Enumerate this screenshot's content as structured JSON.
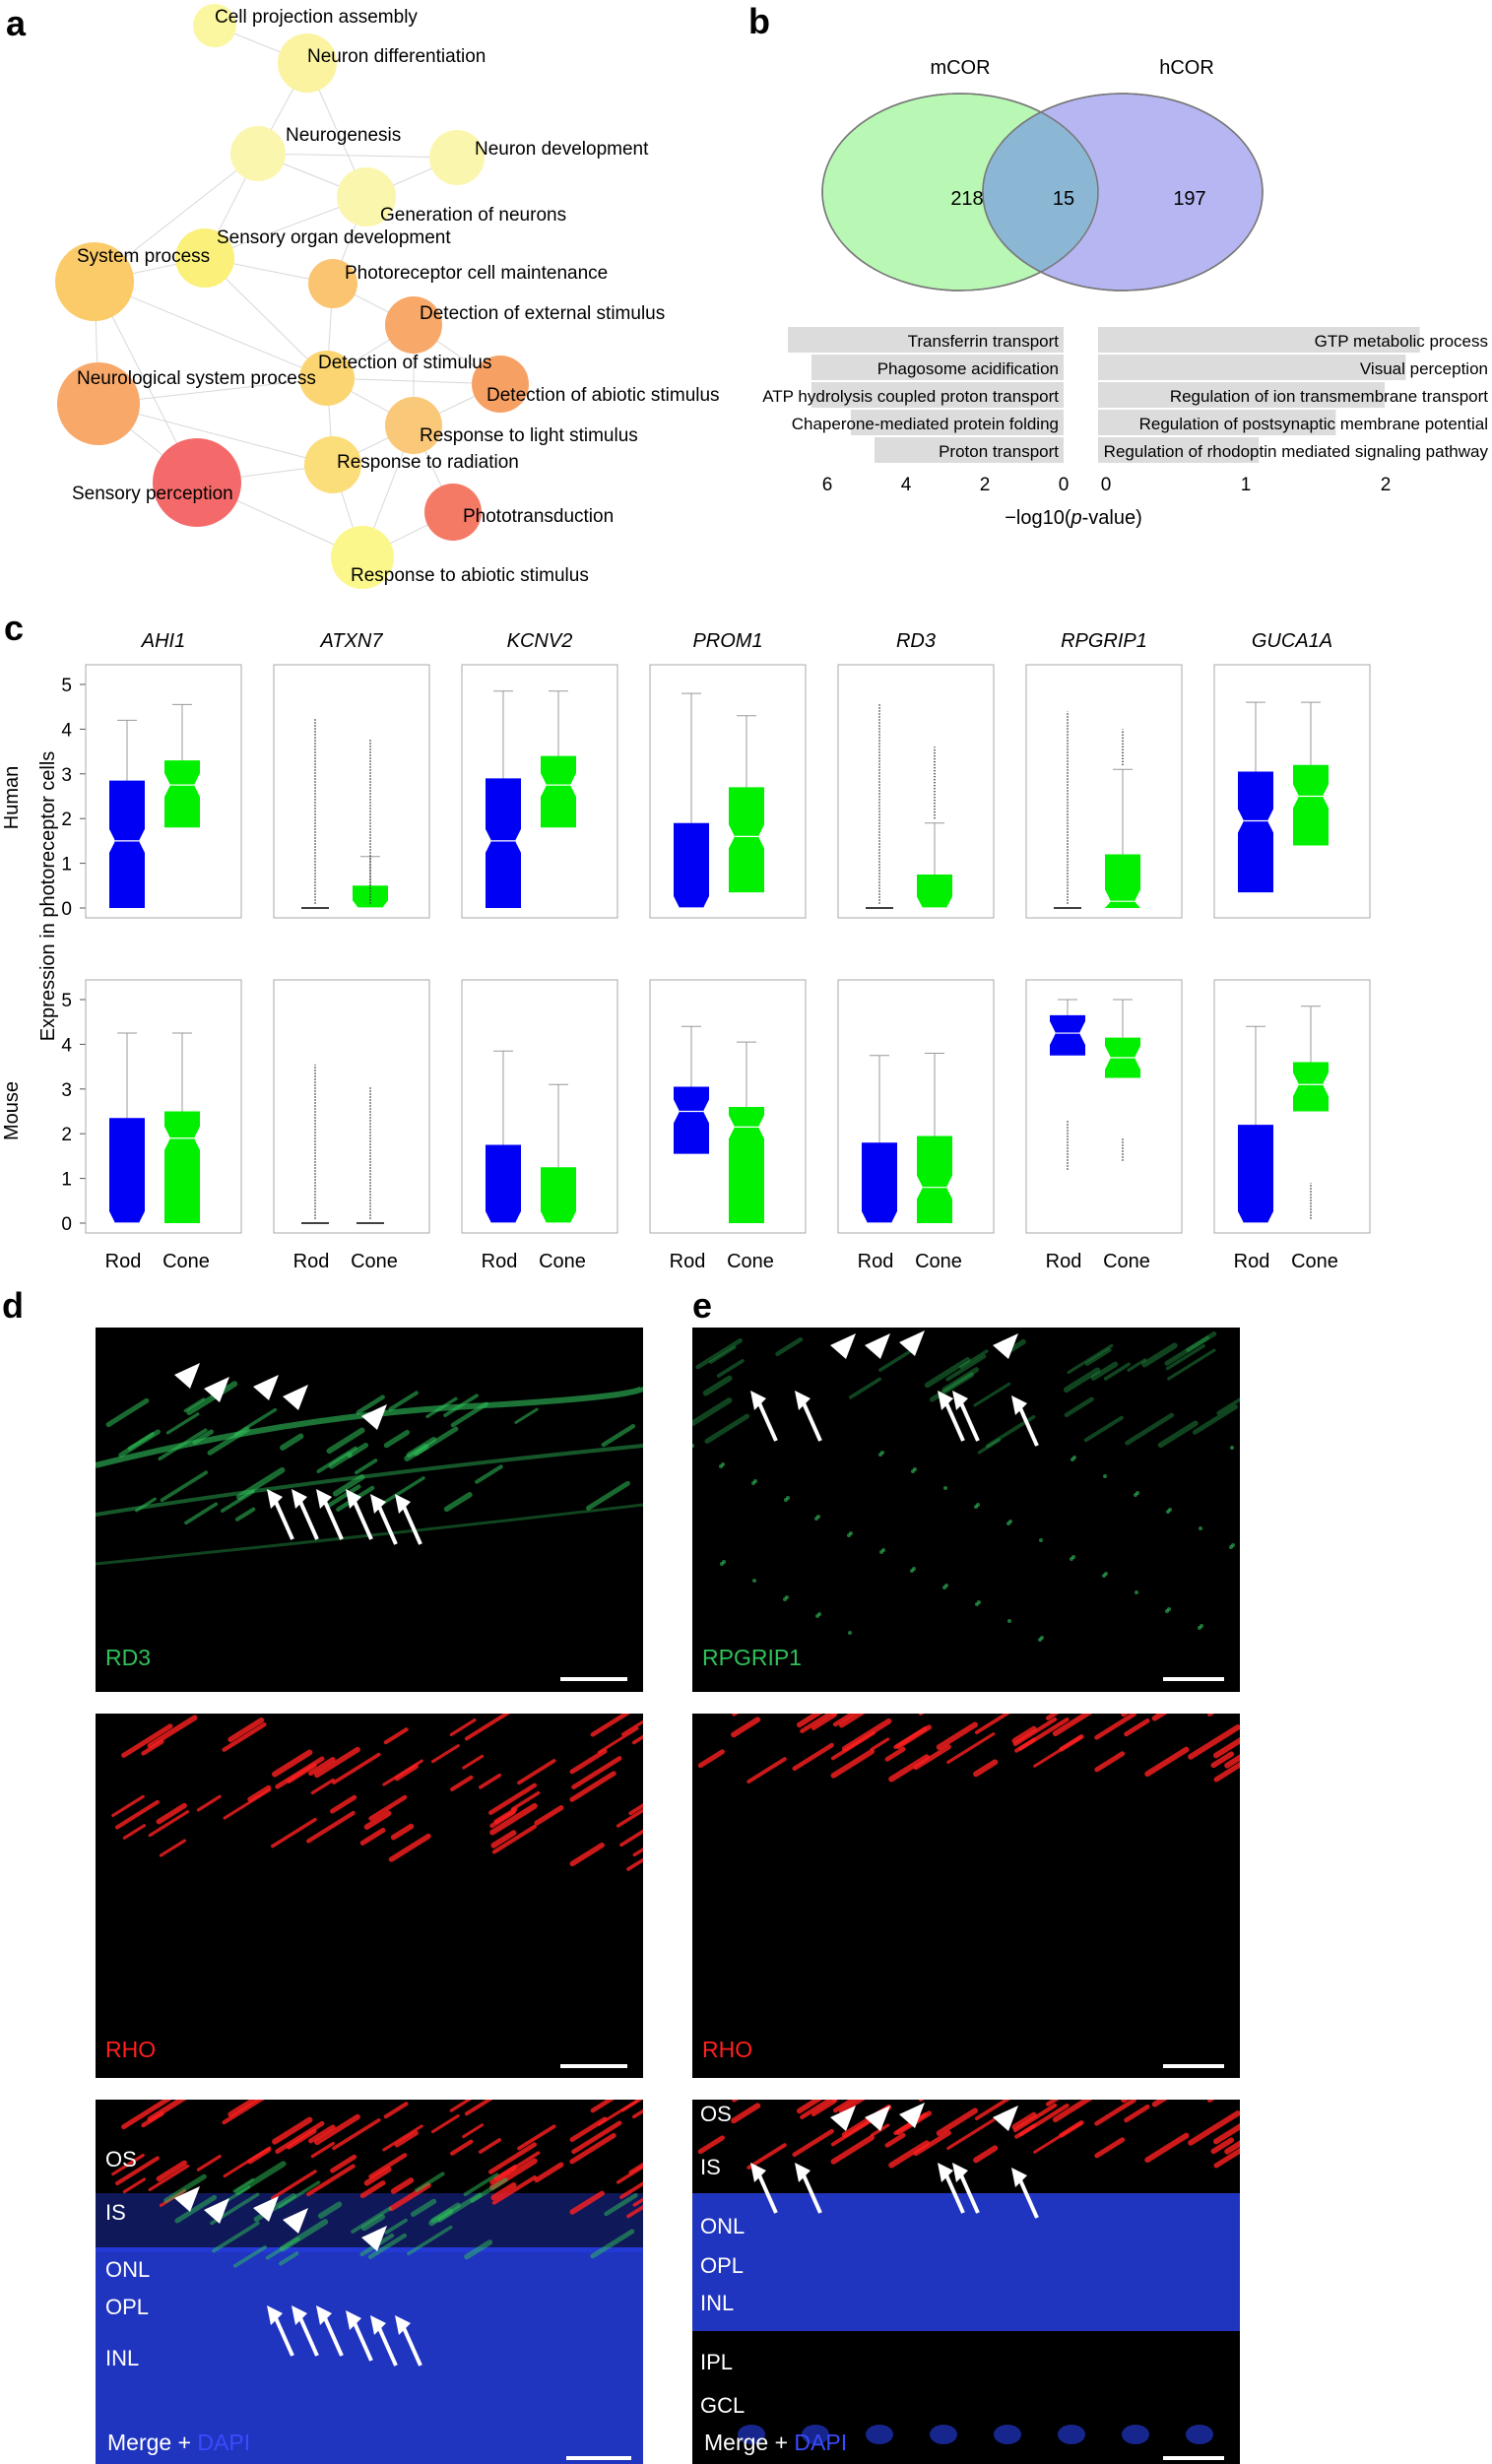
{
  "panel_labels": {
    "a": "a",
    "b": "b",
    "c": "c",
    "d": "d",
    "e": "e"
  },
  "network": {
    "nodes": [
      {
        "label": "Cell projection assembly",
        "color": "#fbf6a0"
      },
      {
        "label": "Neuron differentiation",
        "color": "#fbf3a0"
      },
      {
        "label": "Neurogenesis",
        "color": "#fbf6ad"
      },
      {
        "label": "Neuron development",
        "color": "#fbf6ad"
      },
      {
        "label": "Generation of neurons",
        "color": "#fbf6ad"
      },
      {
        "label": "Sensory organ development",
        "color": "#fbf07a"
      },
      {
        "label": "System process",
        "color": "#fbcb6a"
      },
      {
        "label": "Photoreceptor cell maintenance",
        "color": "#fbc471"
      },
      {
        "label": "Detection of external stimulus",
        "color": "#f8a868"
      },
      {
        "label": "Neurological system process",
        "color": "#f8a868"
      },
      {
        "label": "Detection of stimulus",
        "color": "#fbd572"
      },
      {
        "label": "Detection of abiotic stimulus",
        "color": "#f7a064"
      },
      {
        "label": "Response to light stimulus",
        "color": "#f9c878"
      },
      {
        "label": "Sensory perception",
        "color": "#f46a6a"
      },
      {
        "label": "Response to radiation",
        "color": "#fbdd7a"
      },
      {
        "label": "Phototransduction",
        "color": "#f47a66"
      },
      {
        "label": "Response to abiotic stimulus",
        "color": "#fbf78a"
      }
    ]
  },
  "venn": {
    "left_label": "mCOR",
    "right_label": "hCOR",
    "left_only": "218",
    "overlap": "15",
    "right_only": "197"
  },
  "enrichment": {
    "xlabel": "−log10(p-value)",
    "left_ticks": [
      "6",
      "4",
      "2",
      "0"
    ],
    "right_ticks": [
      "0",
      "1",
      "2"
    ],
    "left_terms": [
      {
        "label": "Transferrin transport",
        "value": 7.0
      },
      {
        "label": "Phagosome acidification",
        "value": 6.4
      },
      {
        "label": "ATP hydrolysis coupled proton transport",
        "value": 6.4
      },
      {
        "label": "Chaperone-mediated protein folding",
        "value": 5.4
      },
      {
        "label": "Proton transport",
        "value": 4.8
      }
    ],
    "right_terms": [
      {
        "label": "GTP metabolic process",
        "value": 2.3
      },
      {
        "label": "Visual perception",
        "value": 2.2
      },
      {
        "label": "Regulation of ion transmembrane transport",
        "value": 2.05
      },
      {
        "label": "Regulation of postsynaptic membrane potential",
        "value": 1.7
      },
      {
        "label": "Regulation of rhodoptin mediated signaling pathway",
        "value": 1.15
      }
    ]
  },
  "chart_data": {
    "type": "boxplot",
    "ylabel": "Expression in photoreceptor cells",
    "row_labels": [
      "Human",
      "Mouse"
    ],
    "categories": [
      "Rod",
      "Cone"
    ],
    "ylim": [
      0,
      5
    ],
    "yticks": [
      "0",
      "1",
      "2",
      "3",
      "4",
      "5"
    ],
    "genes": [
      "AHI1",
      "ATXN7",
      "KCNV2",
      "PROM1",
      "RD3",
      "RPGRIP1",
      "GUCA1A"
    ],
    "colors": {
      "Rod": "#0000f5",
      "Cone": "#00f000"
    },
    "human": [
      {
        "gene": "AHI1",
        "Rod": {
          "q1": 0,
          "median": 1.5,
          "q3": 2.85,
          "max": 4.2
        },
        "Cone": {
          "q1": 1.8,
          "median": 2.75,
          "q3": 3.3,
          "max": 4.55
        }
      },
      {
        "gene": "ATXN7",
        "Rod": {
          "q1": 0,
          "median": 0,
          "q3": 0,
          "max": 0
        },
        "Cone": {
          "q1": 0,
          "median": 0,
          "q3": 0.5,
          "max": 1.15
        }
      },
      {
        "gene": "KCNV2",
        "Rod": {
          "q1": 0,
          "median": 1.5,
          "q3": 2.9,
          "max": 4.85
        },
        "Cone": {
          "q1": 1.8,
          "median": 2.75,
          "q3": 3.4,
          "max": 4.85
        }
      },
      {
        "gene": "PROM1",
        "Rod": {
          "q1": 0,
          "median": 0,
          "q3": 1.9,
          "max": 4.8
        },
        "Cone": {
          "q1": 0.35,
          "median": 1.6,
          "q3": 2.7,
          "max": 4.3
        }
      },
      {
        "gene": "RD3",
        "Rod": {
          "q1": 0,
          "median": 0,
          "q3": 0,
          "max": 0
        },
        "Cone": {
          "q1": 0,
          "median": 0,
          "q3": 0.75,
          "max": 1.9
        }
      },
      {
        "gene": "RPGRIP1",
        "Rod": {
          "q1": 0,
          "median": 0,
          "q3": 0,
          "max": 0
        },
        "Cone": {
          "q1": 0,
          "median": 0.15,
          "q3": 1.2,
          "max": 3.1
        }
      },
      {
        "gene": "GUCA1A",
        "Rod": {
          "q1": 0.35,
          "median": 1.95,
          "q3": 3.05,
          "max": 4.6
        },
        "Cone": {
          "q1": 1.4,
          "median": 2.5,
          "q3": 3.2,
          "max": 4.6
        }
      }
    ],
    "mouse": [
      {
        "gene": "AHI1",
        "Rod": {
          "q1": 0,
          "median": 0,
          "q3": 2.35,
          "max": 4.25
        },
        "Cone": {
          "q1": 0,
          "median": 1.9,
          "q3": 2.5,
          "max": 4.25
        }
      },
      {
        "gene": "ATXN7",
        "Rod": {
          "q1": 0,
          "median": 0,
          "q3": 0,
          "max": 0
        },
        "Cone": {
          "q1": 0,
          "median": 0,
          "q3": 0,
          "max": 0
        }
      },
      {
        "gene": "KCNV2",
        "Rod": {
          "q1": 0,
          "median": 0,
          "q3": 1.75,
          "max": 3.85
        },
        "Cone": {
          "q1": 0,
          "median": 0,
          "q3": 1.25,
          "max": 3.1
        }
      },
      {
        "gene": "PROM1",
        "Rod": {
          "q1": 1.55,
          "median": 2.5,
          "q3": 3.05,
          "max": 4.4
        },
        "Cone": {
          "q1": 0,
          "median": 2.15,
          "q3": 2.6,
          "max": 4.05
        }
      },
      {
        "gene": "RD3",
        "Rod": {
          "q1": 0,
          "median": 0,
          "q3": 1.8,
          "max": 3.75
        },
        "Cone": {
          "q1": 0,
          "median": 0.8,
          "q3": 1.95,
          "max": 3.8
        }
      },
      {
        "gene": "RPGRIP1",
        "Rod": {
          "q1": 3.75,
          "median": 4.25,
          "q3": 4.65,
          "max": 5.0
        },
        "Cone": {
          "q1": 3.25,
          "median": 3.7,
          "q3": 4.15,
          "max": 5.0
        }
      },
      {
        "gene": "GUCA1A",
        "Rod": {
          "q1": 0,
          "median": 0,
          "q3": 2.2,
          "max": 4.4
        },
        "Cone": {
          "q1": 2.5,
          "median": 3.1,
          "q3": 3.6,
          "max": 4.85
        }
      }
    ]
  },
  "microscopy": {
    "d": {
      "top": "RD3",
      "middle": "RHO",
      "bottom_prefix": "Merge + ",
      "bottom_dapi": "DAPI",
      "layers": [
        "OS",
        "IS",
        "ONL",
        "OPL",
        "INL"
      ]
    },
    "e": {
      "top": "RPGRIP1",
      "middle": "RHO",
      "bottom_prefix": "Merge + ",
      "bottom_dapi": "DAPI",
      "layers": [
        "OS",
        "IS",
        "ONL",
        "OPL",
        "INL",
        "IPL",
        "GCL"
      ]
    },
    "colors": {
      "green": "#2fc25a",
      "red": "#ff2020",
      "blue": "#2a46ff"
    }
  }
}
